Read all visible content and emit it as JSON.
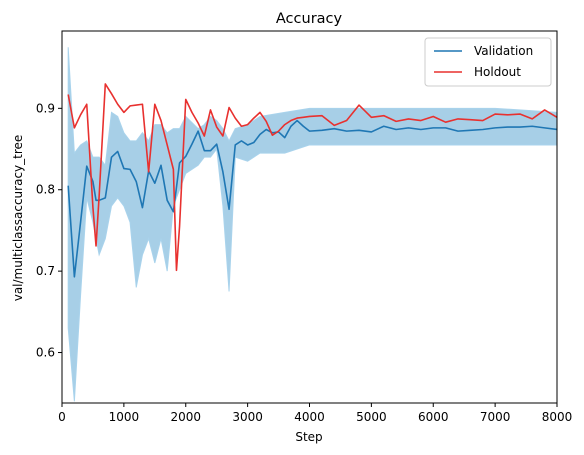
{
  "chart_data": {
    "type": "line",
    "title": "Accuracy",
    "xlabel": "Step",
    "ylabel": "val/multiclassaccuracy_tree",
    "xlim": [
      0,
      8000
    ],
    "ylim": [
      0.538,
      0.995
    ],
    "xticks": [
      0,
      1000,
      2000,
      3000,
      4000,
      5000,
      6000,
      7000,
      8000
    ],
    "yticks": [
      0.6,
      0.7,
      0.8,
      0.9
    ],
    "xtick_labels": [
      "0",
      "1000",
      "2000",
      "3000",
      "4000",
      "5000",
      "6000",
      "7000",
      "8000"
    ],
    "ytick_labels": [
      "0.6",
      "0.7",
      "0.8",
      "0.9"
    ],
    "grid": false,
    "legend": "top-right",
    "band": {
      "color": "#5fa8d3",
      "x": [
        100,
        200,
        300,
        400,
        500,
        600,
        700,
        800,
        900,
        1000,
        1100,
        1200,
        1300,
        1400,
        1500,
        1600,
        1700,
        1800,
        1900,
        2000,
        2200,
        2300,
        2400,
        2500,
        2600,
        2700,
        2800,
        3000,
        3200,
        3600,
        4000,
        5000,
        6000,
        7000,
        8000
      ],
      "upper": [
        0.975,
        0.845,
        0.855,
        0.86,
        0.84,
        0.84,
        0.83,
        0.895,
        0.89,
        0.87,
        0.86,
        0.86,
        0.87,
        0.86,
        0.88,
        0.88,
        0.87,
        0.875,
        0.875,
        0.89,
        0.875,
        0.88,
        0.89,
        0.885,
        0.875,
        0.86,
        0.875,
        0.88,
        0.89,
        0.895,
        0.9,
        0.9,
        0.9,
        0.9,
        0.895
      ],
      "lower": [
        0.63,
        0.54,
        0.67,
        0.79,
        0.76,
        0.72,
        0.74,
        0.78,
        0.79,
        0.78,
        0.76,
        0.68,
        0.72,
        0.74,
        0.71,
        0.74,
        0.7,
        0.78,
        0.8,
        0.82,
        0.83,
        0.84,
        0.84,
        0.85,
        0.78,
        0.675,
        0.84,
        0.835,
        0.845,
        0.845,
        0.855,
        0.855,
        0.855,
        0.855,
        0.855
      ]
    },
    "series": [
      {
        "name": "Validation",
        "color": "#1f77b4",
        "x": [
          100,
          200,
          300,
          400,
          500,
          550,
          600,
          700,
          800,
          900,
          1000,
          1100,
          1200,
          1300,
          1400,
          1500,
          1600,
          1700,
          1800,
          1900,
          2000,
          2100,
          2200,
          2300,
          2400,
          2500,
          2600,
          2700,
          2800,
          2900,
          3000,
          3100,
          3200,
          3300,
          3400,
          3500,
          3600,
          3700,
          3800,
          3900,
          4000,
          4200,
          4400,
          4600,
          4800,
          5000,
          5200,
          5400,
          5600,
          5800,
          6000,
          6200,
          6400,
          6600,
          6800,
          7000,
          7200,
          7400,
          7600,
          7800,
          8000
        ],
        "values": [
          0.805,
          0.693,
          0.76,
          0.829,
          0.81,
          0.787,
          0.787,
          0.79,
          0.84,
          0.847,
          0.826,
          0.825,
          0.81,
          0.778,
          0.823,
          0.808,
          0.83,
          0.787,
          0.773,
          0.833,
          0.841,
          0.856,
          0.872,
          0.848,
          0.848,
          0.856,
          0.822,
          0.776,
          0.855,
          0.86,
          0.855,
          0.858,
          0.868,
          0.874,
          0.87,
          0.871,
          0.864,
          0.878,
          0.885,
          0.878,
          0.872,
          0.873,
          0.875,
          0.872,
          0.873,
          0.871,
          0.878,
          0.874,
          0.876,
          0.874,
          0.876,
          0.876,
          0.872,
          0.873,
          0.874,
          0.876,
          0.877,
          0.877,
          0.878,
          0.876,
          0.874
        ]
      },
      {
        "name": "Holdout",
        "color": "#e8312f",
        "x": [
          100,
          200,
          300,
          400,
          500,
          550,
          600,
          700,
          800,
          900,
          1000,
          1100,
          1200,
          1300,
          1400,
          1500,
          1600,
          1700,
          1800,
          1850,
          1900,
          2000,
          2100,
          2200,
          2300,
          2400,
          2500,
          2600,
          2700,
          2800,
          2900,
          3000,
          3100,
          3200,
          3300,
          3400,
          3500,
          3600,
          3700,
          3800,
          3900,
          4000,
          4200,
          4400,
          4600,
          4800,
          5000,
          5200,
          5400,
          5600,
          5800,
          6000,
          6200,
          6400,
          6600,
          6800,
          7000,
          7200,
          7400,
          7600,
          7800,
          8000
        ],
        "values": [
          0.917,
          0.876,
          0.892,
          0.905,
          0.778,
          0.731,
          0.792,
          0.93,
          0.918,
          0.905,
          0.895,
          0.903,
          0.904,
          0.905,
          0.822,
          0.905,
          0.885,
          0.855,
          0.825,
          0.701,
          0.755,
          0.911,
          0.895,
          0.882,
          0.866,
          0.898,
          0.877,
          0.866,
          0.901,
          0.888,
          0.878,
          0.88,
          0.888,
          0.895,
          0.884,
          0.867,
          0.872,
          0.88,
          0.885,
          0.888,
          0.889,
          0.89,
          0.891,
          0.879,
          0.885,
          0.904,
          0.889,
          0.891,
          0.884,
          0.887,
          0.885,
          0.89,
          0.883,
          0.887,
          0.886,
          0.885,
          0.893,
          0.892,
          0.893,
          0.887,
          0.898,
          0.889
        ]
      }
    ]
  }
}
